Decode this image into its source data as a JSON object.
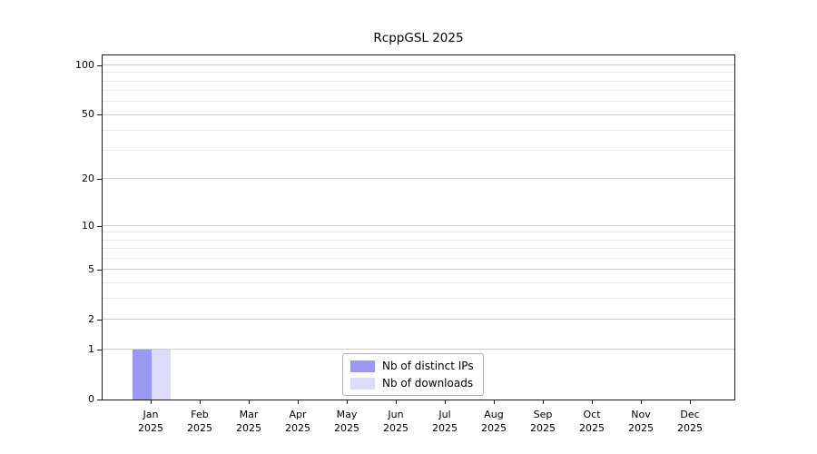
{
  "chart_data": {
    "type": "bar",
    "title": "RcppGSL 2025",
    "categories": [
      "Jan",
      "Feb",
      "Mar",
      "Apr",
      "May",
      "Jun",
      "Jul",
      "Aug",
      "Sep",
      "Oct",
      "Nov",
      "Dec"
    ],
    "year_label": "2025",
    "series": [
      {
        "name": "Nb of distinct IPs",
        "color": "#9999f1",
        "values": [
          1,
          0,
          0,
          0,
          0,
          0,
          0,
          0,
          0,
          0,
          0,
          0
        ]
      },
      {
        "name": "Nb of downloads",
        "color": "#dcdcf8",
        "values": [
          1,
          0,
          0,
          0,
          0,
          0,
          0,
          0,
          0,
          0,
          0,
          0
        ]
      }
    ],
    "y_ticks": [
      100,
      50,
      20,
      10,
      5,
      2,
      1,
      0
    ],
    "y_scale": "log1p",
    "ylim": [
      0,
      100
    ],
    "grid": true,
    "legend_position": "bottom-center"
  },
  "colors": {
    "grid_major": "#cccccc",
    "grid_minor": "#e9e9e9",
    "axis": "#1a1a1a",
    "legend_border": "#b0b0b0",
    "text": "#000000"
  }
}
